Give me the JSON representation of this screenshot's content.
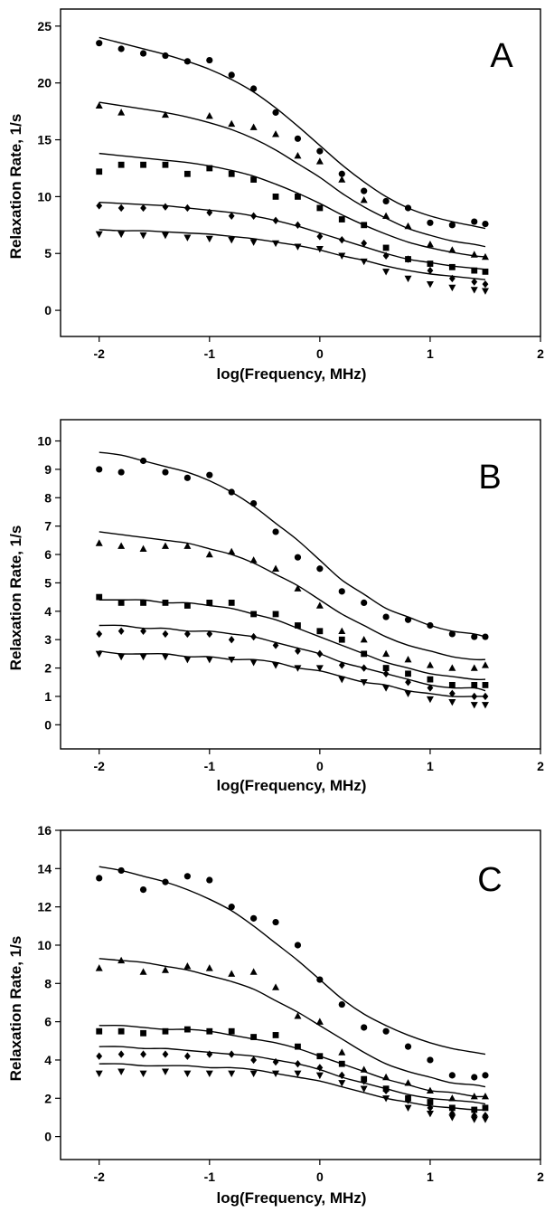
{
  "chart_data": [
    {
      "type": "scatter",
      "panel_label": "A",
      "xlabel": "log(Frequency, MHz)",
      "ylabel": "Relaxation Rate, 1/s",
      "xlim": [
        -2.35,
        2
      ],
      "ylim": [
        -2.3,
        26.5
      ],
      "xticks": [
        -2,
        -1,
        0,
        1,
        2
      ],
      "yticks": [
        0,
        5,
        10,
        15,
        20,
        25
      ],
      "grid": false,
      "x": [
        -2.0,
        -1.8,
        -1.6,
        -1.4,
        -1.2,
        -1.0,
        -0.8,
        -0.6,
        -0.4,
        -0.2,
        0.0,
        0.2,
        0.4,
        0.6,
        0.8,
        1.0,
        1.2,
        1.4,
        1.5
      ],
      "series": [
        {
          "marker": "circle",
          "values": [
            23.5,
            23.0,
            22.6,
            22.4,
            21.9,
            22.0,
            20.7,
            19.5,
            17.4,
            15.1,
            14.0,
            12.0,
            10.5,
            9.6,
            9.0,
            7.7,
            7.5,
            7.8,
            7.6
          ],
          "fit": [
            24.0,
            23.5,
            23.0,
            22.5,
            21.9,
            21.2,
            20.3,
            19.2,
            17.8,
            16.2,
            14.5,
            12.8,
            11.3,
            10.0,
            9.0,
            8.3,
            7.8,
            7.4,
            7.2
          ]
        },
        {
          "marker": "triangle-up",
          "values": [
            18.0,
            17.4,
            null,
            17.2,
            null,
            17.1,
            16.4,
            16.1,
            15.5,
            13.6,
            13.1,
            11.5,
            9.7,
            8.3,
            7.4,
            5.8,
            5.3,
            4.9,
            4.7
          ],
          "fit": [
            18.3,
            18.0,
            17.7,
            17.4,
            17.0,
            16.5,
            15.9,
            15.1,
            14.1,
            12.9,
            11.7,
            10.3,
            9.1,
            8.1,
            7.2,
            6.6,
            6.1,
            5.8,
            5.6
          ]
        },
        {
          "marker": "square",
          "values": [
            12.2,
            12.8,
            12.8,
            12.8,
            12.0,
            12.5,
            12.0,
            11.5,
            10.0,
            10.0,
            9.0,
            8.0,
            7.5,
            5.5,
            4.5,
            4.1,
            3.8,
            3.5,
            3.4
          ],
          "fit": [
            13.8,
            13.6,
            13.4,
            13.2,
            13.0,
            12.7,
            12.3,
            11.8,
            11.1,
            10.3,
            9.4,
            8.4,
            7.5,
            6.7,
            6.0,
            5.5,
            5.1,
            4.8,
            4.7
          ]
        },
        {
          "marker": "diamond",
          "values": [
            9.2,
            9.0,
            9.0,
            9.1,
            9.0,
            8.6,
            8.3,
            8.3,
            7.9,
            7.5,
            6.5,
            6.2,
            5.9,
            4.8,
            4.5,
            3.5,
            2.8,
            2.5,
            2.3
          ],
          "fit": [
            9.5,
            9.4,
            9.3,
            9.2,
            9.0,
            8.8,
            8.6,
            8.3,
            7.9,
            7.4,
            6.8,
            6.2,
            5.6,
            5.0,
            4.5,
            4.2,
            3.9,
            3.7,
            3.6
          ]
        },
        {
          "marker": "triangle-down",
          "values": [
            6.7,
            6.7,
            6.6,
            6.6,
            6.4,
            6.3,
            6.2,
            6.0,
            5.9,
            5.6,
            5.4,
            4.8,
            4.3,
            3.4,
            2.8,
            2.3,
            2.0,
            1.8,
            1.7
          ],
          "fit": [
            7.1,
            7.0,
            7.0,
            6.9,
            6.8,
            6.7,
            6.5,
            6.3,
            6.0,
            5.7,
            5.3,
            4.8,
            4.4,
            3.9,
            3.5,
            3.2,
            3.0,
            2.8,
            2.7
          ]
        }
      ]
    },
    {
      "type": "scatter",
      "panel_label": "B",
      "xlabel": "log(Frequency, MHz)",
      "ylabel": "Relaxation Rate, 1/s",
      "xlim": [
        -2.35,
        2
      ],
      "ylim": [
        -0.85,
        10.75
      ],
      "xticks": [
        -2,
        -1,
        0,
        1,
        2
      ],
      "yticks": [
        0,
        1,
        2,
        3,
        4,
        5,
        6,
        7,
        8,
        9,
        10
      ],
      "grid": false,
      "x": [
        -2.0,
        -1.8,
        -1.6,
        -1.4,
        -1.2,
        -1.0,
        -0.8,
        -0.6,
        -0.4,
        -0.2,
        0.0,
        0.2,
        0.4,
        0.6,
        0.8,
        1.0,
        1.2,
        1.4,
        1.5
      ],
      "series": [
        {
          "marker": "circle",
          "values": [
            9.0,
            8.9,
            9.3,
            8.9,
            8.7,
            8.8,
            8.2,
            7.8,
            6.8,
            5.9,
            5.5,
            4.7,
            4.3,
            3.8,
            3.7,
            3.5,
            3.2,
            3.1,
            3.1
          ],
          "fit": [
            9.6,
            9.5,
            9.3,
            9.1,
            8.9,
            8.6,
            8.2,
            7.7,
            7.1,
            6.5,
            5.8,
            5.1,
            4.6,
            4.1,
            3.8,
            3.5,
            3.3,
            3.2,
            3.1
          ]
        },
        {
          "marker": "triangle-up",
          "values": [
            6.4,
            6.3,
            6.2,
            6.3,
            6.3,
            6.0,
            6.1,
            5.8,
            5.5,
            4.8,
            4.2,
            3.3,
            3.0,
            2.5,
            2.3,
            2.1,
            2.0,
            2.0,
            2.1
          ],
          "fit": [
            6.8,
            6.7,
            6.6,
            6.5,
            6.4,
            6.2,
            6.0,
            5.7,
            5.3,
            4.9,
            4.4,
            3.9,
            3.5,
            3.1,
            2.8,
            2.6,
            2.4,
            2.3,
            2.3
          ]
        },
        {
          "marker": "square",
          "values": [
            4.5,
            4.3,
            4.3,
            4.3,
            4.2,
            4.3,
            4.3,
            3.9,
            3.9,
            3.5,
            3.3,
            3.0,
            2.5,
            2.0,
            1.8,
            1.6,
            1.4,
            1.4,
            1.4
          ],
          "fit": [
            4.4,
            4.4,
            4.4,
            4.3,
            4.3,
            4.2,
            4.1,
            3.9,
            3.7,
            3.4,
            3.1,
            2.8,
            2.5,
            2.2,
            2.0,
            1.8,
            1.7,
            1.6,
            1.6
          ]
        },
        {
          "marker": "diamond",
          "values": [
            3.2,
            3.3,
            3.3,
            3.2,
            3.2,
            3.2,
            3.0,
            3.1,
            2.8,
            2.6,
            2.5,
            2.1,
            2.0,
            1.8,
            1.5,
            1.3,
            1.1,
            1.0,
            1.0
          ],
          "fit": [
            3.5,
            3.5,
            3.4,
            3.4,
            3.3,
            3.3,
            3.2,
            3.1,
            2.9,
            2.7,
            2.5,
            2.2,
            2.0,
            1.8,
            1.6,
            1.4,
            1.3,
            1.3,
            1.2
          ]
        },
        {
          "marker": "triangle-down",
          "values": [
            2.5,
            2.4,
            2.4,
            2.4,
            2.3,
            2.3,
            2.3,
            2.2,
            2.1,
            2.0,
            2.0,
            1.6,
            1.5,
            1.3,
            1.1,
            0.9,
            0.8,
            0.7,
            0.7
          ],
          "fit": [
            2.6,
            2.5,
            2.5,
            2.5,
            2.4,
            2.4,
            2.3,
            2.3,
            2.2,
            2.0,
            1.9,
            1.7,
            1.5,
            1.4,
            1.2,
            1.1,
            1.0,
            1.0,
            1.0
          ]
        }
      ]
    },
    {
      "type": "scatter",
      "panel_label": "C",
      "xlabel": "log(Frequency, MHz)",
      "ylabel": "Relaxation Rate, 1/s",
      "xlim": [
        -2.35,
        2
      ],
      "ylim": [
        -1.2,
        16
      ],
      "xticks": [
        -2,
        -1,
        0,
        1,
        2
      ],
      "yticks": [
        0,
        2,
        4,
        6,
        8,
        10,
        12,
        14,
        16
      ],
      "grid": false,
      "x": [
        -2.0,
        -1.8,
        -1.6,
        -1.4,
        -1.2,
        -1.0,
        -0.8,
        -0.6,
        -0.4,
        -0.2,
        0.0,
        0.2,
        0.4,
        0.6,
        0.8,
        1.0,
        1.2,
        1.4,
        1.5
      ],
      "series": [
        {
          "marker": "circle",
          "values": [
            13.5,
            13.9,
            12.9,
            13.3,
            13.6,
            13.4,
            12.0,
            11.4,
            11.2,
            10.0,
            8.2,
            6.9,
            5.7,
            5.5,
            4.7,
            4.0,
            3.2,
            3.1,
            3.2
          ],
          "fit": [
            14.1,
            13.9,
            13.6,
            13.3,
            12.9,
            12.4,
            11.8,
            11.0,
            10.1,
            9.2,
            8.2,
            7.2,
            6.4,
            5.8,
            5.3,
            4.9,
            4.6,
            4.4,
            4.3
          ]
        },
        {
          "marker": "triangle-up",
          "values": [
            8.8,
            9.2,
            8.6,
            8.7,
            8.9,
            8.8,
            8.5,
            8.6,
            7.8,
            6.3,
            6.0,
            4.4,
            3.5,
            3.1,
            2.8,
            2.4,
            2.0,
            2.1,
            2.1
          ],
          "fit": [
            9.3,
            9.2,
            9.1,
            8.9,
            8.7,
            8.4,
            8.1,
            7.7,
            7.1,
            6.5,
            5.8,
            5.1,
            4.4,
            3.8,
            3.4,
            3.1,
            2.8,
            2.7,
            2.6
          ]
        },
        {
          "marker": "square",
          "values": [
            5.5,
            5.5,
            5.4,
            5.5,
            5.6,
            5.5,
            5.5,
            5.2,
            5.3,
            4.7,
            4.2,
            3.8,
            3.0,
            2.5,
            2.0,
            1.8,
            1.5,
            1.4,
            1.5
          ],
          "fit": [
            5.8,
            5.8,
            5.7,
            5.6,
            5.6,
            5.5,
            5.3,
            5.1,
            4.9,
            4.6,
            4.2,
            3.8,
            3.4,
            3.0,
            2.7,
            2.4,
            2.3,
            2.1,
            2.1
          ]
        },
        {
          "marker": "diamond",
          "values": [
            4.2,
            4.3,
            4.3,
            4.3,
            4.2,
            4.3,
            4.3,
            4.0,
            3.9,
            3.8,
            3.6,
            3.2,
            2.9,
            2.4,
            1.9,
            1.5,
            1.2,
            1.1,
            1.1
          ],
          "fit": [
            4.7,
            4.7,
            4.6,
            4.6,
            4.5,
            4.4,
            4.3,
            4.2,
            4.0,
            3.8,
            3.5,
            3.1,
            2.8,
            2.5,
            2.2,
            2.0,
            1.9,
            1.8,
            1.7
          ]
        },
        {
          "marker": "triangle-down",
          "values": [
            3.3,
            3.4,
            3.3,
            3.4,
            3.3,
            3.3,
            3.3,
            3.3,
            3.3,
            3.3,
            3.2,
            2.8,
            2.5,
            2.0,
            1.5,
            1.2,
            1.0,
            0.9,
            0.9
          ],
          "fit": [
            3.8,
            3.8,
            3.7,
            3.7,
            3.7,
            3.6,
            3.6,
            3.5,
            3.3,
            3.1,
            2.9,
            2.6,
            2.3,
            2.0,
            1.8,
            1.6,
            1.5,
            1.4,
            1.4
          ]
        }
      ]
    }
  ]
}
